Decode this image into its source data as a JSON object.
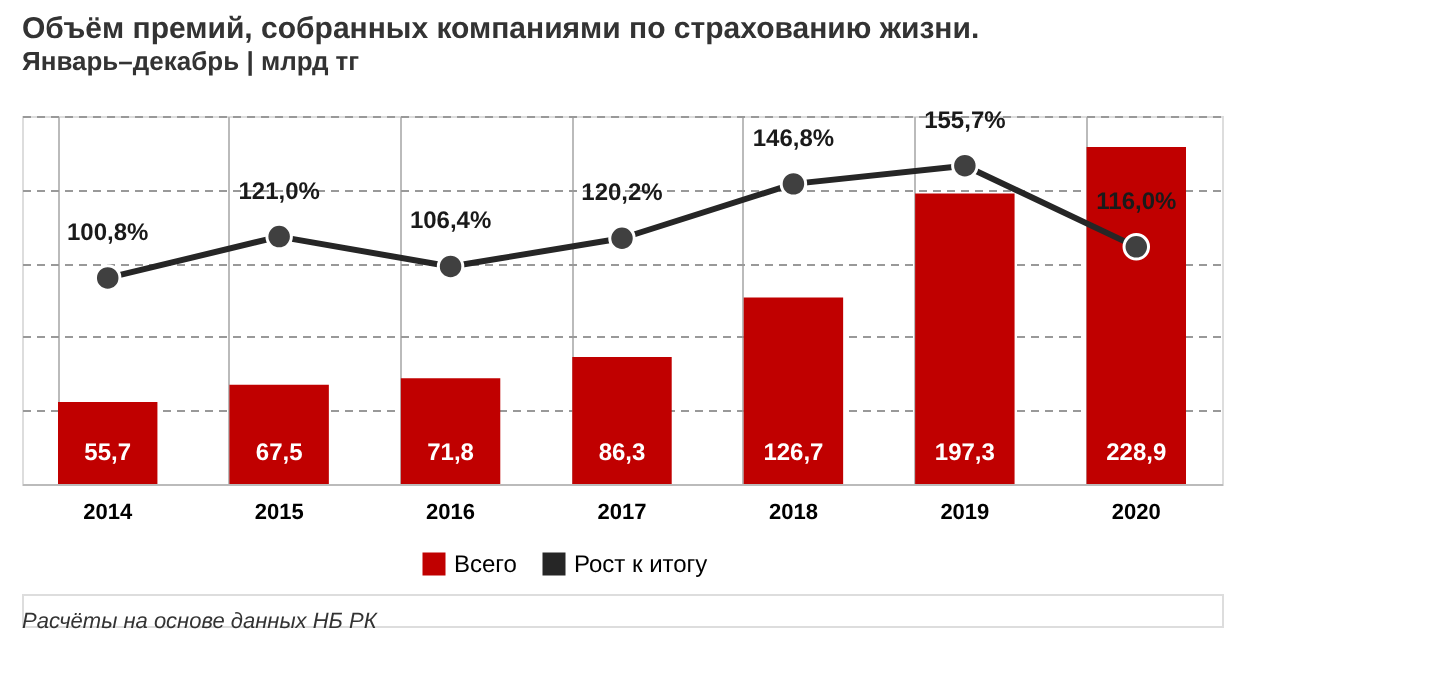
{
  "chart_data": {
    "type": "bar",
    "title": "Объём премий, собранных компаниями по страхованию жизни.",
    "subtitle": "Январь–декабрь | млрд тг",
    "categories": [
      "2014",
      "2015",
      "2016",
      "2017",
      "2018",
      "2019",
      "2020"
    ],
    "series": [
      {
        "name": "Всего",
        "color": "#c00000",
        "values": [
          55.7,
          67.5,
          71.8,
          86.3,
          126.7,
          197.3,
          228.9
        ],
        "value_labels": [
          "55,7",
          "67,5",
          "71,8",
          "86,3",
          "126,7",
          "197,3",
          "228,9"
        ]
      },
      {
        "name": "Рост к итогу",
        "type": "line",
        "axis": "y2",
        "color": "#262626",
        "marker": "circle",
        "values": [
          100.8,
          121.0,
          106.4,
          120.2,
          146.8,
          155.7,
          116.0
        ],
        "value_labels": [
          "100,8%",
          "121,0%",
          "106,4%",
          "120,2%",
          "146,8%",
          "155,7%",
          "116,0%"
        ]
      }
    ],
    "ylim": [
      0,
      250
    ],
    "yticks": [
      {
        "value": 0,
        "label": null
      },
      {
        "value": 50,
        "label": null
      },
      {
        "value": 100,
        "label": null
      },
      {
        "value": 150,
        "label": null
      },
      {
        "value": 200,
        "label": null
      },
      {
        "value": 250,
        "label": null
      }
    ],
    "y2lim": [
      0,
      180
    ],
    "tick_labels": "x",
    "grid": true,
    "legend": "bottom",
    "annotations": [
      "Расчёты на основе данных НБ РК"
    ]
  }
}
